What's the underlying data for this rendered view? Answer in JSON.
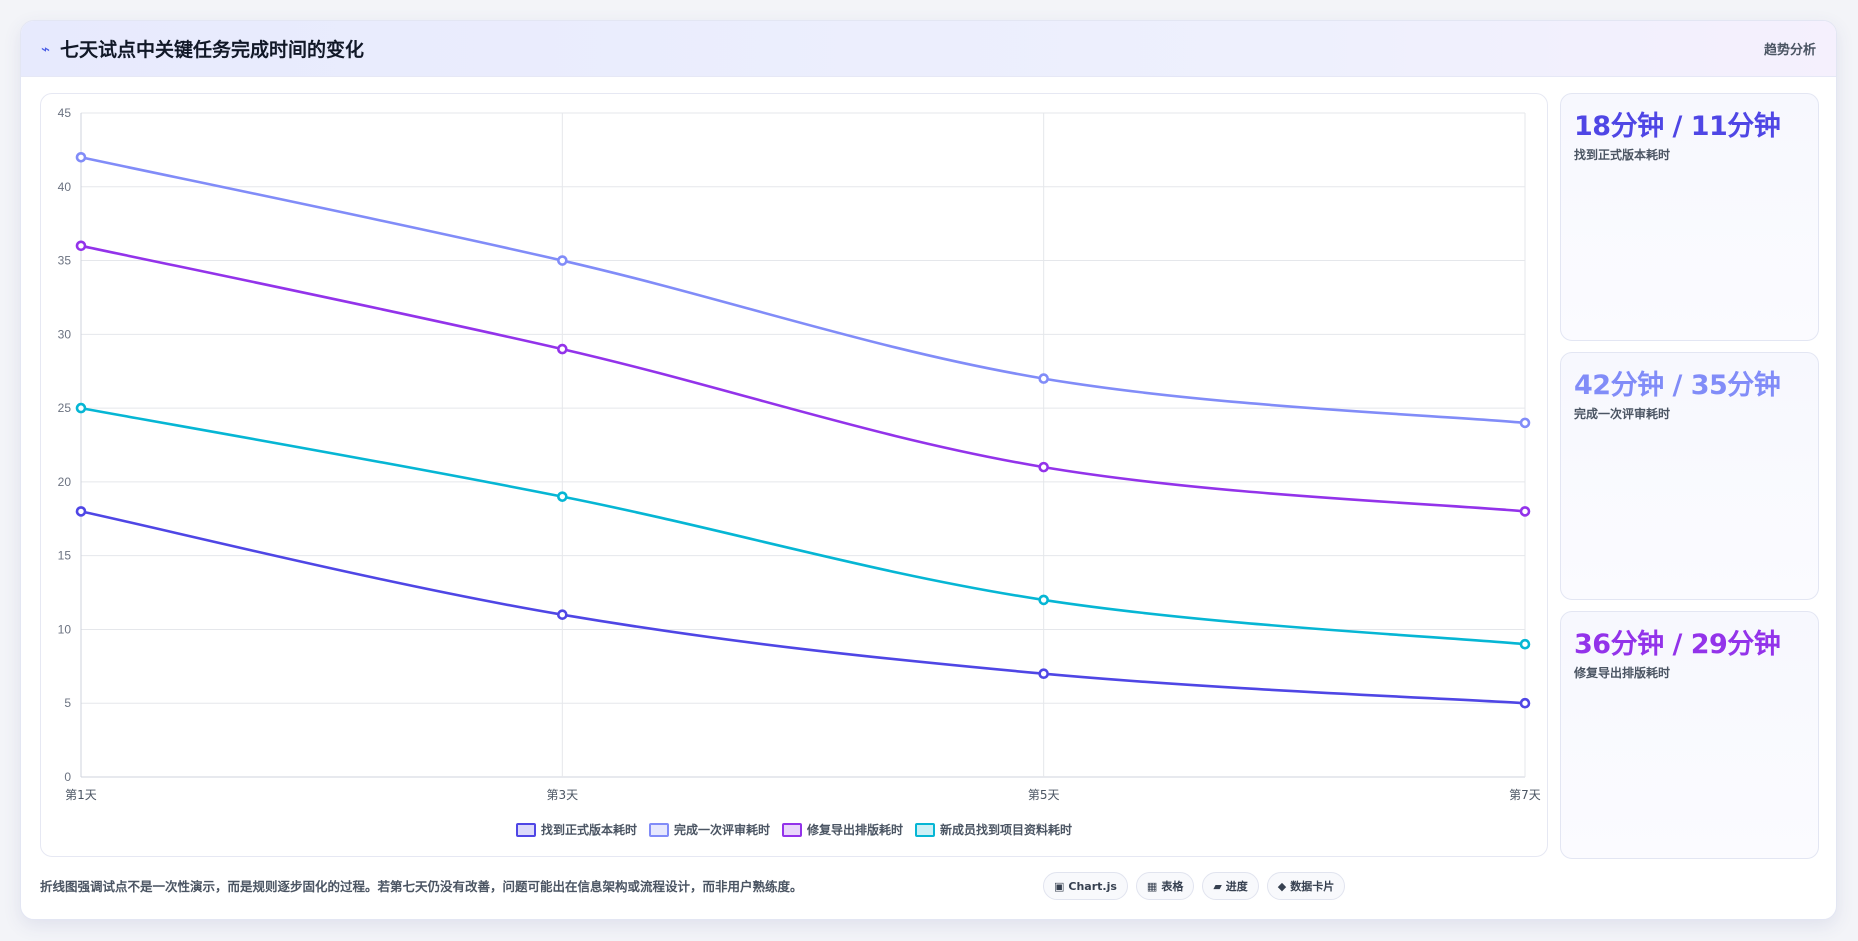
{
  "header": {
    "icon": "lightning-icon",
    "title": "七天试点中关键任务完成时间的变化",
    "right_label": "趋势分析"
  },
  "chart_data": {
    "type": "line",
    "categories": [
      "第1天",
      "第3天",
      "第5天",
      "第7天"
    ],
    "series": [
      {
        "name": "找到正式版本耗时",
        "values": [
          18,
          11,
          7,
          5
        ],
        "color": "#4f46e5"
      },
      {
        "name": "完成一次评审耗时",
        "values": [
          42,
          35,
          27,
          24
        ],
        "color": "#818cf8"
      },
      {
        "name": "修复导出排版耗时",
        "values": [
          36,
          29,
          21,
          18
        ],
        "color": "#9333ea"
      },
      {
        "name": "新成员找到项目资料耗时",
        "values": [
          25,
          19,
          12,
          9
        ],
        "color": "#06b6d4"
      }
    ],
    "ylim": [
      0,
      45
    ],
    "yticks": [
      0,
      5,
      10,
      15,
      20,
      25,
      30,
      35,
      40,
      45
    ],
    "grid": true,
    "legend_position": "bottom",
    "title": "",
    "xlabel": "",
    "ylabel": ""
  },
  "kpis": [
    {
      "value": "18分钟 / 11分钟",
      "label": "找到正式版本耗时",
      "color": "#4f46e5"
    },
    {
      "value": "42分钟 / 35分钟",
      "label": "完成一次评审耗时",
      "color": "#818cf8"
    },
    {
      "value": "36分钟 / 29分钟",
      "label": "修复导出排版耗时",
      "color": "#9333ea"
    }
  ],
  "footer": {
    "note": "折线图强调试点不是一次性演示，而是规则逐步固化的过程。若第七天仍没有改善，问题可能出在信息架构或流程设计，而非用户熟练度。",
    "chips": [
      {
        "icon": "▣",
        "label": "Chart.js"
      },
      {
        "icon": "▦",
        "label": "表格"
      },
      {
        "icon": "▰",
        "label": "进度"
      },
      {
        "icon": "◆",
        "label": "数据卡片"
      }
    ]
  }
}
